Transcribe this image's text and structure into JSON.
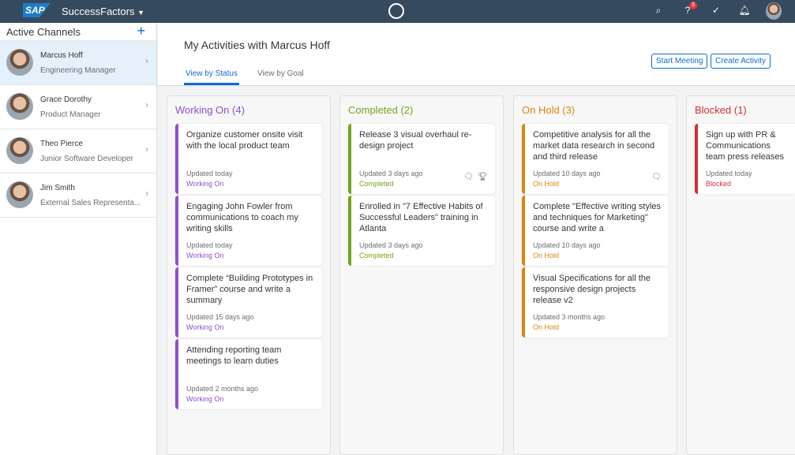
{
  "header": {
    "logo": "SAP",
    "product": "SuccessFactors",
    "notification_count": "3"
  },
  "sidebar": {
    "title": "Active Channels",
    "items": [
      {
        "name": "Marcus Hoff",
        "role": "Engineering Manager"
      },
      {
        "name": "Grace Dorothy",
        "role": "Product Manager"
      },
      {
        "name": "Theo Pierce",
        "role": "Junior Software Developer"
      },
      {
        "name": "Jim Smith",
        "role": "External Sales Representa..."
      }
    ]
  },
  "main": {
    "title": "My Activities with Marcus Hoff",
    "start_meeting": "Start Meeting",
    "create_activity": "Create Activity",
    "tabs": [
      {
        "label": "View by Status"
      },
      {
        "label": "View by Goal"
      }
    ]
  },
  "colors": {
    "working": "#8e4fcf",
    "completed": "#74a519",
    "onhold": "#dc850c",
    "blocked": "#d32f36"
  },
  "columns": [
    {
      "title": "Working On (4)",
      "cards": [
        {
          "title": "Organize customer onsite visit with the local product team",
          "updated": "Updated today",
          "status": "Working On"
        },
        {
          "title": "Engaging John Fowler from communications to coach my writing skills",
          "updated": "Updated today",
          "status": "Working On"
        },
        {
          "title": "Complete “Building Prototypes in Framer” course and write a summary",
          "updated": "Updated 15 days ago",
          "status": "Working On"
        },
        {
          "title": "Attending reporting team meetings to learn duties",
          "updated": "Updated 2 months ago",
          "status": "Working On"
        }
      ]
    },
    {
      "title": "Completed (2)",
      "cards": [
        {
          "title": "Release 3 visual overhaul re-design project",
          "updated": "Updated 3 days ago",
          "status": "Completed"
        },
        {
          "title": "Enrolled in \"7 Effective Habits of Successful Leaders\" training in Atlanta",
          "updated": "Updated 3 days ago",
          "status": "Completed"
        }
      ]
    },
    {
      "title": "On Hold (3)",
      "cards": [
        {
          "title": "Competitive analysis for all the market data research in second and third release",
          "updated": "Updated 10 days ago",
          "status": "On Hold"
        },
        {
          "title": "Complete \"Effective writing styles and techniques for Marketing\" course and write a",
          "updated": "Updated 10 days ago",
          "status": "On Hold"
        },
        {
          "title": "Visual Specifications for all the responsive design projects release v2",
          "updated": "Updated 3 months ago",
          "status": "On Hold"
        }
      ]
    },
    {
      "title": "Blocked (1)",
      "cards": [
        {
          "title": "Sign up with PR & Communications team press releases",
          "updated": "Updated today",
          "status": "Blocked"
        }
      ]
    }
  ]
}
